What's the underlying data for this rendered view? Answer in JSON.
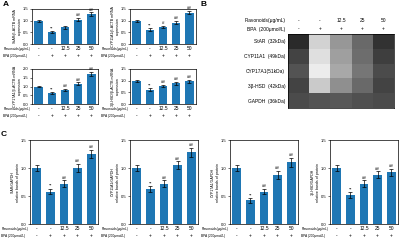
{
  "chart_data": [
    {
      "type": "bar",
      "title": "A",
      "ylabel": "StAR/β-ACTB mRNA\nexpression",
      "category_rows": [
        {
          "name": "Flavonoids(μg/mL)",
          "labels": [
            "-",
            "-",
            "12.5",
            "25",
            "50"
          ]
        },
        {
          "name": "BPA (200μmol/L)",
          "labels": [
            "-",
            "+",
            "+",
            "+",
            "+"
          ]
        }
      ],
      "values": [
        1.0,
        0.5,
        0.72,
        1.05,
        1.28
      ],
      "errors": [
        0.05,
        0.04,
        0.06,
        0.07,
        0.08
      ],
      "annotations": [
        null,
        "**",
        null,
        "##",
        "##"
      ],
      "ylim": [
        0.0,
        1.5
      ],
      "yticks": [
        0.0,
        0.5,
        1.0,
        1.5
      ]
    },
    {
      "type": "bar",
      "ylabel": "CYP11A1/β-ACTB mRNA\nexpression",
      "category_rows": [
        {
          "name": "Flavonoids(μg/mL)",
          "labels": [
            "-",
            "-",
            "12.5",
            "25",
            "50"
          ]
        },
        {
          "name": "BPA (200μmol/L)",
          "labels": [
            "-",
            "+",
            "+",
            "+",
            "+"
          ]
        }
      ],
      "values": [
        1.0,
        0.62,
        0.72,
        0.92,
        1.35
      ],
      "errors": [
        0.05,
        0.06,
        0.05,
        0.07,
        0.08
      ],
      "annotations": [
        null,
        "**",
        "#",
        "##",
        "##"
      ],
      "ylim": [
        0.0,
        1.5
      ],
      "yticks": [
        0.0,
        0.5,
        1.0,
        1.5
      ]
    },
    {
      "type": "bar",
      "ylabel": "CYP17A1/β-ACTB mRNA\nexpression",
      "category_rows": [
        {
          "name": "Flavonoids(μg/mL)",
          "labels": [
            "-",
            "-",
            "12.5",
            "25",
            "50"
          ]
        },
        {
          "name": "BPA (200μmol/L)",
          "labels": [
            "-",
            "+",
            "+",
            "+",
            "+"
          ]
        }
      ],
      "values": [
        1.0,
        0.62,
        0.82,
        1.15,
        1.72
      ],
      "errors": [
        0.05,
        0.05,
        0.06,
        0.08,
        0.1
      ],
      "annotations": [
        null,
        "**",
        "##",
        "##",
        "##"
      ],
      "ylim": [
        0.0,
        2.0
      ],
      "yticks": [
        0.0,
        0.5,
        1.0,
        1.5,
        2.0
      ]
    },
    {
      "type": "bar",
      "ylabel": "3β-HSD/β-ACTB mRNA\nexpression",
      "category_rows": [
        {
          "name": "Flavonoids(μg/mL)",
          "labels": [
            "-",
            "-",
            "12.5",
            "25",
            "50"
          ]
        },
        {
          "name": "BPA (200μmol/L)",
          "labels": [
            "-",
            "+",
            "+",
            "+",
            "+"
          ]
        }
      ],
      "values": [
        1.0,
        0.62,
        0.78,
        0.88,
        0.98
      ],
      "errors": [
        0.04,
        0.05,
        0.05,
        0.06,
        0.06
      ],
      "annotations": [
        null,
        "**",
        "##",
        "##",
        "##"
      ],
      "ylim": [
        0.0,
        1.5
      ],
      "yticks": [
        0.0,
        0.5,
        1.0,
        1.5
      ]
    },
    {
      "type": "heatmap",
      "title": "B",
      "category_rows": [
        {
          "name": "Flavonoids(μg/mL)",
          "labels": [
            "-",
            "-",
            "12.5",
            "25",
            "50"
          ]
        },
        {
          "name": "BPA  (200μmol/L)",
          "labels": [
            "-",
            "+",
            "+",
            "+",
            "+"
          ]
        }
      ],
      "rows": [
        "StAR  (32kDa)",
        "CYP11A1  (49kDa)",
        "CYP17A1(51kDa)",
        "3β-HSD  (42kDa)",
        "GAPDH  (36kDa)"
      ],
      "cells": [
        [
          0.78,
          0.38,
          0.52,
          0.63,
          0.76
        ],
        [
          0.72,
          0.35,
          0.5,
          0.62,
          0.73
        ],
        [
          0.68,
          0.32,
          0.48,
          0.6,
          0.7
        ],
        [
          0.72,
          0.4,
          0.54,
          0.63,
          0.72
        ],
        [
          0.7,
          0.68,
          0.67,
          0.69,
          0.7
        ]
      ]
    },
    {
      "type": "bar",
      "title": "C",
      "ylabel": "StAR/GAPDH\nrelative bands of protein",
      "category_rows": [
        {
          "name": "Flavonoids(μg/mL)",
          "labels": [
            "-",
            "-",
            "12.5",
            "25",
            "50"
          ]
        },
        {
          "name": "BPA (200μmol/L)",
          "labels": [
            "-",
            "+",
            "+",
            "+",
            "+"
          ]
        }
      ],
      "values": [
        1.0,
        0.58,
        0.72,
        1.0,
        1.25
      ],
      "errors": [
        0.05,
        0.05,
        0.06,
        0.07,
        0.08
      ],
      "annotations": [
        null,
        "**",
        "##",
        "##",
        "##"
      ],
      "ylim": [
        0.0,
        1.5
      ],
      "yticks": [
        0.0,
        0.5,
        1.0,
        1.5
      ]
    },
    {
      "type": "bar",
      "ylabel": "CYP11A1/GAPDH\nrelative bands of protein",
      "category_rows": [
        {
          "name": "Flavonoids(μg/mL)",
          "labels": [
            "-",
            "-",
            "12.5",
            "25",
            "50"
          ]
        },
        {
          "name": "BPA (200μmol/L)",
          "labels": [
            "-",
            "+",
            "+",
            "+",
            "+"
          ]
        }
      ],
      "values": [
        1.0,
        0.62,
        0.72,
        1.05,
        1.28
      ],
      "errors": [
        0.05,
        0.05,
        0.06,
        0.07,
        0.08
      ],
      "annotations": [
        null,
        "**",
        "##",
        "##",
        "##"
      ],
      "ylim": [
        0.0,
        1.5
      ],
      "yticks": [
        0.0,
        0.5,
        1.0,
        1.5
      ]
    },
    {
      "type": "bar",
      "ylabel": "CYP17A1/GAPDH\nrelative bands of protein",
      "category_rows": [
        {
          "name": "Flavonoids(μg/mL)",
          "labels": [
            "-",
            "-",
            "12.5",
            "25",
            "50"
          ]
        },
        {
          "name": "BPA (200μmol/L)",
          "labels": [
            "-",
            "+",
            "+",
            "+",
            "+"
          ]
        }
      ],
      "values": [
        1.0,
        0.42,
        0.58,
        0.88,
        1.1
      ],
      "errors": [
        0.05,
        0.04,
        0.05,
        0.07,
        0.08
      ],
      "annotations": [
        null,
        "**",
        "##",
        "##",
        "##"
      ],
      "ylim": [
        0.0,
        1.5
      ],
      "yticks": [
        0.0,
        0.5,
        1.0,
        1.5
      ]
    },
    {
      "type": "bar",
      "ylabel": "3β-HSD/GAPDH\nrelative bands of protein",
      "category_rows": [
        {
          "name": "Flavonoids(μg/mL)",
          "labels": [
            "-",
            "-",
            "12.5",
            "25",
            "50"
          ]
        },
        {
          "name": "BPA (200μmol/L)",
          "labels": [
            "-",
            "+",
            "+",
            "+",
            "+"
          ]
        }
      ],
      "values": [
        1.0,
        0.52,
        0.72,
        0.88,
        0.92
      ],
      "errors": [
        0.05,
        0.05,
        0.06,
        0.06,
        0.07
      ],
      "annotations": [
        null,
        "**",
        "##",
        "##",
        "##"
      ],
      "ylim": [
        0.0,
        1.5
      ],
      "yticks": [
        0.0,
        0.5,
        1.0,
        1.5
      ]
    }
  ]
}
